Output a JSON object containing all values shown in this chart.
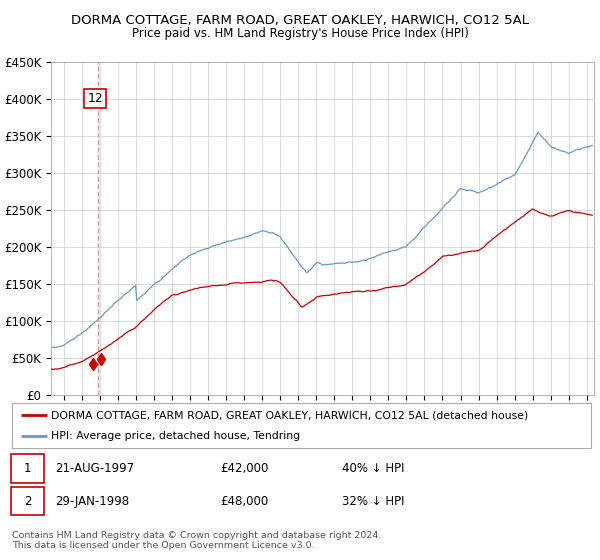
{
  "title": "DORMA COTTAGE, FARM ROAD, GREAT OAKLEY, HARWICH, CO12 5AL",
  "subtitle": "Price paid vs. HM Land Registry's House Price Index (HPI)",
  "legend_line1": "DORMA COTTAGE, FARM ROAD, GREAT OAKLEY, HARWICH, CO12 5AL (detached house)",
  "legend_line2": "HPI: Average price, detached house, Tendring",
  "transaction1_date": "21-AUG-1997",
  "transaction1_price": "£42,000",
  "transaction1_hpi": "40% ↓ HPI",
  "transaction2_date": "29-JAN-1998",
  "transaction2_price": "£48,000",
  "transaction2_hpi": "32% ↓ HPI",
  "footer": "Contains HM Land Registry data © Crown copyright and database right 2024.\nThis data is licensed under the Open Government Licence v3.0.",
  "transaction1_year": 1997.64,
  "transaction1_value": 42000,
  "transaction2_year": 1998.08,
  "transaction2_value": 48000,
  "dashed_line_year": 1997.9,
  "ylim": [
    0,
    450000
  ],
  "yticks": [
    0,
    50000,
    100000,
    150000,
    200000,
    250000,
    300000,
    350000,
    400000,
    450000
  ],
  "red_color": "#cc0000",
  "blue_color": "#6699cc",
  "dashed_color": "#dd8888",
  "box_color": "#cc0000",
  "bg_color": "#ffffff",
  "grid_color": "#cccccc",
  "start_year": 1995.3,
  "end_year": 2025.4
}
